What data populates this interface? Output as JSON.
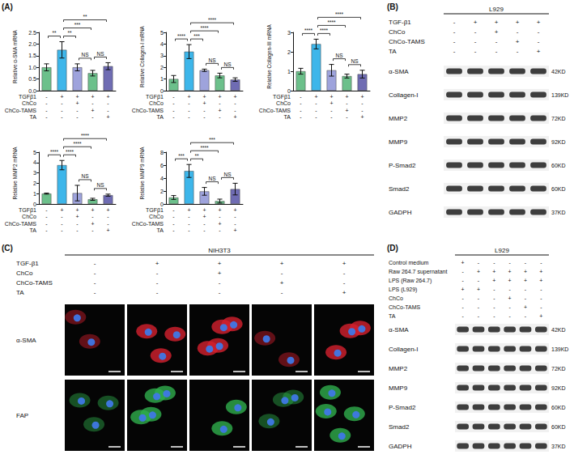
{
  "chart_data": [
    {
      "type": "bar",
      "y_label": "Relative α-SMA mRNA",
      "categories": [
        null,
        null,
        null,
        null,
        null
      ],
      "values": [
        1.0,
        1.75,
        1.0,
        0.75,
        1.05
      ],
      "errors": [
        0.15,
        0.35,
        0.15,
        0.12,
        0.15
      ],
      "colors": [
        "#6cc08b",
        "#3db6ea",
        "#9ea3dc",
        "#6cc08b",
        "#6f6cb3"
      ],
      "ylim": [
        0,
        2.5
      ],
      "yticks": [
        {
          "value": 0,
          "label": "0.0"
        },
        {
          "value": 0.5,
          "label": "0.5"
        },
        {
          "value": 1,
          "label": "1.0"
        },
        {
          "value": 1.5,
          "label": "1.5"
        },
        {
          "value": 2,
          "label": "2.0"
        },
        {
          "value": 2.5,
          "label": "2.5"
        }
      ],
      "grid": false,
      "comparisons": [
        {
          "bars": [
            0,
            1
          ],
          "label": "**"
        },
        {
          "bars": [
            1,
            2
          ],
          "label": "**"
        },
        {
          "bars": [
            1,
            3
          ],
          "label": "***"
        },
        {
          "bars": [
            1,
            4
          ],
          "label": "**"
        },
        {
          "bars": [
            2,
            3
          ],
          "label": "NS"
        },
        {
          "bars": [
            3,
            4
          ],
          "label": "NS"
        }
      ],
      "treatments": [
        {
          "name": "TGFβ1",
          "signs": [
            "-",
            "+",
            "+",
            "+",
            "+"
          ]
        },
        {
          "name": "ChCo",
          "signs": [
            "-",
            "-",
            "+",
            "-",
            "-"
          ]
        },
        {
          "name": "ChCo-TAMS",
          "signs": [
            "-",
            "-",
            "-",
            "+",
            "-"
          ]
        },
        {
          "name": "TA",
          "signs": [
            "-",
            "-",
            "-",
            "-",
            "+"
          ]
        }
      ]
    },
    {
      "type": "bar",
      "y_label": "Relative Collagen-I mRNA",
      "categories": [
        null,
        null,
        null,
        null,
        null
      ],
      "values": [
        1.0,
        3.35,
        1.75,
        1.3,
        0.95
      ],
      "errors": [
        0.3,
        0.6,
        0.1,
        0.2,
        0.15
      ],
      "colors": [
        "#6cc08b",
        "#3db6ea",
        "#9ea3dc",
        "#6cc08b",
        "#6f6cb3"
      ],
      "ylim": [
        0,
        5
      ],
      "yticks": [
        0,
        1,
        2,
        3,
        4,
        5
      ],
      "grid": false,
      "comparisons": [
        {
          "bars": [
            0,
            1
          ],
          "label": "****"
        },
        {
          "bars": [
            1,
            2
          ],
          "label": "***"
        },
        {
          "bars": [
            1,
            3
          ],
          "label": "****"
        },
        {
          "bars": [
            1,
            4
          ],
          "label": "****"
        },
        {
          "bars": [
            2,
            3
          ],
          "label": "NS"
        },
        {
          "bars": [
            3,
            4
          ],
          "label": "NS"
        }
      ],
      "treatments": [
        {
          "name": "TGFβ1",
          "signs": [
            "-",
            "+",
            "+",
            "+",
            "+"
          ]
        },
        {
          "name": "ChCo",
          "signs": [
            "-",
            "-",
            "+",
            "-",
            "-"
          ]
        },
        {
          "name": "ChCo-TAMS",
          "signs": [
            "-",
            "-",
            "-",
            "+",
            "-"
          ]
        },
        {
          "name": "TA",
          "signs": [
            "-",
            "-",
            "-",
            "-",
            "+"
          ]
        }
      ]
    },
    {
      "type": "bar",
      "y_label": "Relative Collagen-III mRNA",
      "categories": [
        null,
        null,
        null,
        null,
        null
      ],
      "values": [
        1.0,
        2.4,
        1.05,
        0.75,
        0.85
      ],
      "errors": [
        0.15,
        0.25,
        0.3,
        0.1,
        0.2
      ],
      "colors": [
        "#6cc08b",
        "#3db6ea",
        "#9ea3dc",
        "#6cc08b",
        "#6f6cb3"
      ],
      "ylim": [
        0,
        3
      ],
      "yticks": [
        0,
        1,
        2,
        3
      ],
      "grid": false,
      "comparisons": [
        {
          "bars": [
            0,
            1
          ],
          "label": "****"
        },
        {
          "bars": [
            1,
            2
          ],
          "label": "****"
        },
        {
          "bars": [
            1,
            3
          ],
          "label": "****"
        },
        {
          "bars": [
            1,
            4
          ],
          "label": "****"
        },
        {
          "bars": [
            2,
            3
          ],
          "label": "NS"
        },
        {
          "bars": [
            3,
            4
          ],
          "label": "NS"
        }
      ],
      "treatments": [
        {
          "name": "TGFβ1",
          "signs": [
            "-",
            "+",
            "+",
            "+",
            "+"
          ]
        },
        {
          "name": "ChCo",
          "signs": [
            "-",
            "-",
            "+",
            "-",
            "-"
          ]
        },
        {
          "name": "ChCo-TAMS",
          "signs": [
            "-",
            "-",
            "-",
            "+",
            "-"
          ]
        },
        {
          "name": "TA",
          "signs": [
            "-",
            "-",
            "-",
            "-",
            "+"
          ]
        }
      ]
    },
    {
      "type": "bar",
      "y_label": "Relative MMP2 mRNA",
      "categories": [
        null,
        null,
        null,
        null,
        null
      ],
      "values": [
        1.0,
        3.75,
        1.05,
        0.45,
        0.85
      ],
      "errors": [
        0.05,
        0.45,
        0.75,
        0.1,
        0.1
      ],
      "colors": [
        "#6cc08b",
        "#3db6ea",
        "#9ea3dc",
        "#6cc08b",
        "#6f6cb3"
      ],
      "ylim": [
        0,
        5
      ],
      "yticks": [
        0,
        1,
        2,
        3,
        4,
        5
      ],
      "grid": false,
      "comparisons": [
        {
          "bars": [
            0,
            1
          ],
          "label": "****"
        },
        {
          "bars": [
            1,
            2
          ],
          "label": "****"
        },
        {
          "bars": [
            1,
            3
          ],
          "label": "****"
        },
        {
          "bars": [
            1,
            4
          ],
          "label": "****"
        },
        {
          "bars": [
            2,
            3
          ],
          "label": "NS"
        },
        {
          "bars": [
            3,
            4
          ],
          "label": "NS"
        }
      ],
      "treatments": [
        {
          "name": "TGFβ1",
          "signs": [
            "-",
            "+",
            "+",
            "+",
            "+"
          ]
        },
        {
          "name": "ChCo",
          "signs": [
            "-",
            "-",
            "+",
            "-",
            "-"
          ]
        },
        {
          "name": "ChCo-TAMS",
          "signs": [
            "-",
            "-",
            "-",
            "+",
            "-"
          ]
        },
        {
          "name": "TA",
          "signs": [
            "-",
            "-",
            "-",
            "-",
            "+"
          ]
        }
      ]
    },
    {
      "type": "bar",
      "y_label": "Relative MMP9 mRNA",
      "categories": [
        null,
        null,
        null,
        null,
        null
      ],
      "values": [
        1.0,
        5.1,
        1.95,
        0.45,
        2.3
      ],
      "errors": [
        0.3,
        1.0,
        0.6,
        0.3,
        0.9
      ],
      "colors": [
        "#6cc08b",
        "#3db6ea",
        "#9ea3dc",
        "#6cc08b",
        "#6f6cb3"
      ],
      "ylim": [
        0,
        8
      ],
      "yticks": [
        0,
        2,
        4,
        6,
        8
      ],
      "grid": false,
      "comparisons": [
        {
          "bars": [
            0,
            1
          ],
          "label": "***"
        },
        {
          "bars": [
            1,
            2
          ],
          "label": "**"
        },
        {
          "bars": [
            1,
            3
          ],
          "label": "****"
        },
        {
          "bars": [
            1,
            4
          ],
          "label": "***"
        },
        {
          "bars": [
            2,
            3
          ],
          "label": "NS"
        },
        {
          "bars": [
            3,
            4
          ],
          "label": "NS"
        }
      ],
      "treatments": [
        {
          "name": "TGFβ1",
          "signs": [
            "-",
            "+",
            "+",
            "+",
            "+"
          ]
        },
        {
          "name": "ChCo",
          "signs": [
            "-",
            "-",
            "+",
            "-",
            "-"
          ]
        },
        {
          "name": "ChCo-TAMS",
          "signs": [
            "-",
            "-",
            "-",
            "+",
            "-"
          ]
        },
        {
          "name": "TA",
          "signs": [
            "-",
            "-",
            "-",
            "-",
            "+"
          ]
        }
      ]
    }
  ],
  "panels": {
    "A": {
      "label": "(A)"
    },
    "B": {
      "label": "(B)",
      "cell_line": "L929",
      "treatments": [
        {
          "name": "TGF-β1",
          "signs": [
            "-",
            "+",
            "+",
            "+",
            "+"
          ]
        },
        {
          "name": "ChCo",
          "signs": [
            "-",
            "-",
            "+",
            "-",
            "-"
          ]
        },
        {
          "name": "ChCo-TAMS",
          "signs": [
            "-",
            "-",
            "-",
            "+",
            "-"
          ]
        },
        {
          "name": "TA",
          "signs": [
            "-",
            "-",
            "-",
            "-",
            "+"
          ]
        }
      ],
      "proteins": [
        {
          "name": "α-SMA",
          "size": "42KD"
        },
        {
          "name": "Collagen-I",
          "size": "139KD"
        },
        {
          "name": "MMP2",
          "size": "72KD"
        },
        {
          "name": "MMP9",
          "size": "92KD"
        },
        {
          "name": "P-Smad2",
          "size": "60KD"
        },
        {
          "name": "Smad2",
          "size": "60KD"
        },
        {
          "name": "GADPH",
          "size": "37KD"
        }
      ]
    },
    "C": {
      "label": "(C)",
      "cell_line": "NIH3T3",
      "treatments": [
        {
          "name": "TGF-β1",
          "signs": [
            "-",
            "+",
            "+",
            "+",
            "+"
          ]
        },
        {
          "name": "ChCo",
          "signs": [
            "-",
            "-",
            "+",
            "-",
            "-"
          ]
        },
        {
          "name": "ChCo-TAMS",
          "signs": [
            "-",
            "-",
            "-",
            "+",
            "-"
          ]
        },
        {
          "name": "TA",
          "signs": [
            "-",
            "-",
            "-",
            "-",
            "+"
          ]
        }
      ],
      "stains": [
        "α-SMA",
        "FAP"
      ]
    },
    "D": {
      "label": "(D)",
      "cell_line": "L929",
      "treatments": [
        {
          "name": "Control medium",
          "signs": [
            "+",
            "-",
            "-",
            "-",
            "-",
            "-"
          ]
        },
        {
          "name": "Raw 264.7 supernatant",
          "signs": [
            "-",
            "+",
            "+",
            "+",
            "+",
            "+"
          ]
        },
        {
          "name": "LPS (Raw 264.7)",
          "signs": [
            "-",
            "-",
            "+",
            "+",
            "+",
            "+"
          ]
        },
        {
          "name": "LPS (L929)",
          "signs": [
            "+",
            "+",
            "-",
            "-",
            "-",
            "-"
          ]
        },
        {
          "name": "ChCo",
          "signs": [
            "-",
            "-",
            "-",
            "+",
            "-",
            "-"
          ]
        },
        {
          "name": "ChCo-TAMS",
          "signs": [
            "-",
            "-",
            "-",
            "-",
            "+",
            "-"
          ]
        },
        {
          "name": "TA",
          "signs": [
            "-",
            "-",
            "-",
            "-",
            "-",
            "+"
          ]
        }
      ],
      "proteins": [
        {
          "name": "α-SMA",
          "size": "42KD"
        },
        {
          "name": "Collagen-I",
          "size": "139KD"
        },
        {
          "name": "MMP2",
          "size": "72KD"
        },
        {
          "name": "MMP9",
          "size": "92KD"
        },
        {
          "name": "P-Smad2",
          "size": "60KD"
        },
        {
          "name": "Smad2",
          "size": "60KD"
        },
        {
          "name": "GADPH",
          "size": "37KD"
        }
      ]
    }
  }
}
